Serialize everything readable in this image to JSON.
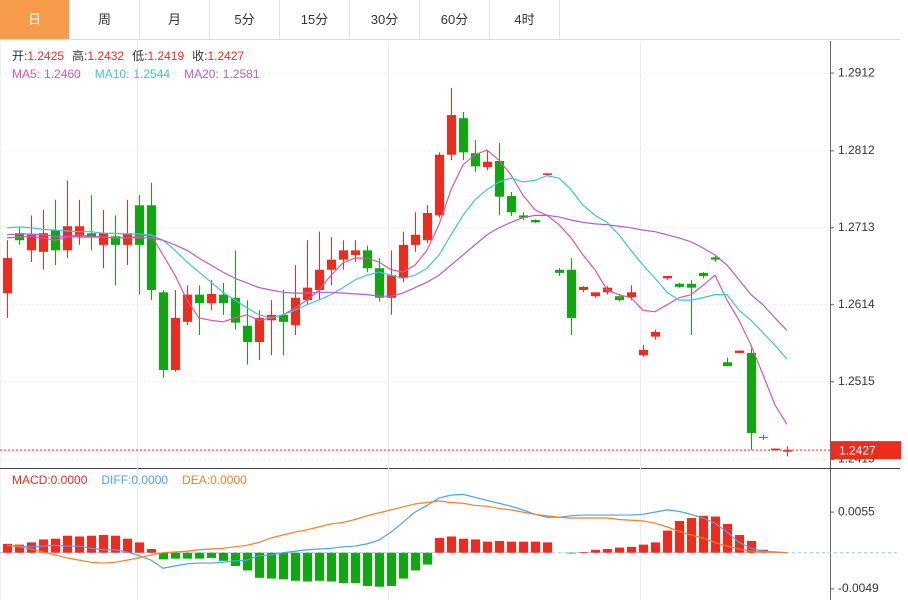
{
  "tabs": [
    "日",
    "周",
    "月",
    "5分",
    "15分",
    "30分",
    "60分",
    "4时"
  ],
  "active_tab": 0,
  "chart_data": [
    {
      "type": "candlestick",
      "ylim": [
        1.2404,
        1.2952
      ],
      "yticks": [
        1.2912,
        1.2812,
        1.2713,
        1.2614,
        1.2515,
        1.2415
      ],
      "grid": true,
      "up_color": "#ee2b1c",
      "down_color": "#10a810",
      "ohlc_labels": [
        "开:",
        "高:",
        "低:",
        "收:"
      ],
      "open": [
        1.2629,
        1.2706,
        1.2684,
        1.2682,
        1.271,
        1.2684,
        1.2702,
        1.2706,
        1.2691,
        1.2702,
        1.2691,
        1.2742,
        1.2742,
        1.263,
        1.253,
        1.2592,
        1.2627,
        1.2616,
        1.2627,
        1.2623,
        1.2587,
        1.2566,
        1.2594,
        1.2601,
        1.2588,
        1.262,
        1.2633,
        1.2659,
        1.2672,
        1.2678,
        1.2684,
        1.2661,
        1.2623,
        1.2648,
        1.2691,
        1.2697,
        1.2729,
        1.2807,
        1.2854,
        1.2809,
        1.2791,
        1.2799,
        1.2754,
        1.2729,
        1.2723,
        1.2781,
        1.2659,
        1.2659,
        1.2633,
        1.2625,
        1.263,
        1.2625,
        1.2624,
        1.2549,
        1.2573,
        1.2648,
        1.2641,
        1.2641,
        1.2655,
        1.2675,
        1.254,
        1.2552,
        1.2552,
        1.2444,
        1.2427,
        1.2425
      ],
      "high": [
        1.2697,
        1.2713,
        1.2729,
        1.2736,
        1.2749,
        1.2774,
        1.2749,
        1.2755,
        1.2736,
        1.2729,
        1.2749,
        1.2755,
        1.2771,
        1.2633,
        1.2633,
        1.2639,
        1.2639,
        1.2646,
        1.2642,
        1.2684,
        1.262,
        1.2607,
        1.262,
        1.2633,
        1.2665,
        1.2697,
        1.2708,
        1.2701,
        1.2697,
        1.2697,
        1.269,
        1.2674,
        1.2684,
        1.2708,
        1.2733,
        1.2742,
        1.281,
        1.2893,
        1.2862,
        1.2826,
        1.2813,
        1.2822,
        1.2759,
        1.2733,
        1.2724,
        1.2783,
        1.2661,
        1.2674,
        1.2638,
        1.263,
        1.2638,
        1.2628,
        1.2639,
        1.2562,
        1.2582,
        1.2651,
        1.2642,
        1.2646,
        1.2656,
        1.2677,
        1.2546,
        1.2555,
        1.2558,
        1.2447,
        1.2429,
        1.2432
      ],
      "low": [
        1.2597,
        1.2691,
        1.2669,
        1.2659,
        1.2665,
        1.2674,
        1.2691,
        1.2684,
        1.2661,
        1.2639,
        1.2665,
        1.2627,
        1.262,
        1.252,
        1.2528,
        1.2588,
        1.2575,
        1.2607,
        1.2601,
        1.2582,
        1.2537,
        1.2543,
        1.2549,
        1.2549,
        1.2575,
        1.2614,
        1.262,
        1.2639,
        1.2659,
        1.2669,
        1.2656,
        1.2618,
        1.2601,
        1.2643,
        1.2682,
        1.2693,
        1.2726,
        1.28,
        1.28,
        1.2785,
        1.2787,
        1.2729,
        1.2728,
        1.2723,
        1.2719,
        1.278,
        1.2651,
        1.2575,
        1.263,
        1.2623,
        1.2627,
        1.2618,
        1.262,
        1.2547,
        1.2569,
        1.2646,
        1.2636,
        1.2575,
        1.2648,
        1.2669,
        1.2535,
        1.2552,
        1.2427,
        1.244,
        1.2426,
        1.2419
      ],
      "close": [
        1.2674,
        1.2697,
        1.2704,
        1.2706,
        1.2684,
        1.2715,
        1.2715,
        1.2701,
        1.2706,
        1.2691,
        1.2706,
        1.2691,
        1.2633,
        1.253,
        1.2597,
        1.2627,
        1.2616,
        1.2628,
        1.2616,
        1.2591,
        1.2566,
        1.2597,
        1.2601,
        1.2592,
        1.2623,
        1.2636,
        1.2659,
        1.2672,
        1.2684,
        1.2684,
        1.2661,
        1.2623,
        1.2652,
        1.2691,
        1.2704,
        1.2732,
        1.2807,
        1.2858,
        1.281,
        1.2792,
        1.2798,
        1.2753,
        1.2733,
        1.2726,
        1.272,
        1.2783,
        1.2655,
        1.2597,
        1.2637,
        1.263,
        1.2636,
        1.262,
        1.263,
        1.2556,
        1.2579,
        1.2651,
        1.2637,
        1.2636,
        1.2651,
        1.2672,
        1.2535,
        1.2555,
        1.2449,
        1.2443,
        1.2429,
        1.2427
      ],
      "series": [
        {
          "name": "MA5:",
          "color": "#e0559b",
          "values": [
            1.27,
            1.2701,
            1.2702,
            1.27,
            1.2697,
            1.2701,
            1.2704,
            1.2702,
            1.2701,
            1.27,
            1.27,
            1.2702,
            1.2704,
            1.2678,
            1.2652,
            1.262,
            1.2597,
            1.2594,
            1.2592,
            1.2597,
            1.2601,
            1.2594,
            1.2597,
            1.2601,
            1.261,
            1.262,
            1.2633,
            1.2652,
            1.2668,
            1.2674,
            1.2674,
            1.2669,
            1.2659,
            1.2656,
            1.2665,
            1.2684,
            1.2717,
            1.2762,
            1.2794,
            1.2807,
            1.2813,
            1.28,
            1.2781,
            1.2755,
            1.2736,
            1.2729,
            1.2717,
            1.27,
            1.2678,
            1.2659,
            1.2633,
            1.2627,
            1.2623,
            1.2607,
            1.2605,
            1.2614,
            1.2623,
            1.2627,
            1.2639,
            1.2652,
            1.262,
            1.2594,
            1.2562,
            1.2524,
            1.2485,
            1.246
          ],
          "value_labels": [
            null,
            null,
            null,
            null,
            null,
            null,
            null,
            null,
            null,
            null,
            null,
            null,
            null,
            null,
            null,
            null,
            null,
            null,
            null,
            null,
            null,
            null,
            null,
            null,
            null,
            null,
            null,
            null,
            null,
            null,
            null,
            null,
            null,
            null,
            null,
            null,
            null,
            null,
            null,
            null,
            null,
            null,
            null,
            null,
            null,
            null,
            null,
            null,
            null,
            null,
            null,
            null,
            null,
            null,
            null,
            null,
            null,
            null,
            null,
            null,
            null,
            null,
            null,
            null,
            null,
            "1.2460"
          ]
        },
        {
          "name": "MA10:",
          "color": "#3cc4d8",
          "values": [
            1.2713,
            1.2714,
            1.2713,
            1.2711,
            1.271,
            1.2709,
            1.2708,
            1.2708,
            1.2706,
            1.2706,
            1.2705,
            1.2705,
            1.2704,
            1.2697,
            1.2684,
            1.2669,
            1.2656,
            1.2643,
            1.263,
            1.262,
            1.261,
            1.2601,
            1.2597,
            1.2601,
            1.2607,
            1.2614,
            1.262,
            1.2627,
            1.2636,
            1.2646,
            1.2652,
            1.2656,
            1.2652,
            1.2648,
            1.2652,
            1.2661,
            1.2678,
            1.2704,
            1.2729,
            1.2749,
            1.2762,
            1.2772,
            1.2777,
            1.2772,
            1.2774,
            1.278,
            1.2777,
            1.2762,
            1.2742,
            1.2729,
            1.272,
            1.2704,
            1.2684,
            1.2665,
            1.2648,
            1.263,
            1.262,
            1.262,
            1.2623,
            1.2627,
            1.2627,
            1.2607,
            1.2594,
            1.2578,
            1.2562,
            1.2544
          ]
        },
        {
          "name": "MA20:",
          "color": "#b062c4",
          "values": [
            1.2704,
            1.2705,
            1.2705,
            1.2704,
            1.2702,
            1.2702,
            1.2701,
            1.2701,
            1.2701,
            1.27,
            1.27,
            1.27,
            1.27,
            1.2697,
            1.2691,
            1.2684,
            1.2674,
            1.2665,
            1.2656,
            1.2648,
            1.2642,
            1.2636,
            1.2633,
            1.263,
            1.2629,
            1.2629,
            1.263,
            1.263,
            1.2629,
            1.2628,
            1.2627,
            1.2625,
            1.2625,
            1.2629,
            1.2636,
            1.2643,
            1.2652,
            1.2665,
            1.2678,
            1.2691,
            1.2704,
            1.2713,
            1.272,
            1.2726,
            1.2729,
            1.2729,
            1.2727,
            1.2723,
            1.272,
            1.2718,
            1.2717,
            1.2715,
            1.2713,
            1.271,
            1.2708,
            1.2704,
            1.27,
            1.2695,
            1.2687,
            1.2678,
            1.2665,
            1.2646,
            1.2627,
            1.2614,
            1.2597,
            1.2581
          ]
        }
      ]
    },
    {
      "type": "macd",
      "ylim": [
        -0.0064,
        0.0112
      ],
      "yticks": [
        0.0055,
        -0.0049
      ],
      "series": [
        {
          "name": "MACD:",
          "color": "#ee2b1c",
          "negative_color": "#10a810",
          "style": "bar",
          "values": [
            0.0012,
            0.0011,
            0.0014,
            0.0018,
            0.0019,
            0.0023,
            0.0022,
            0.0023,
            0.0024,
            0.0023,
            0.0019,
            0.0014,
            0.0005,
            -0.0009,
            -0.0008,
            -0.0008,
            -0.0008,
            -0.0007,
            -0.0011,
            -0.0018,
            -0.0024,
            -0.0034,
            -0.0035,
            -0.0036,
            -0.0038,
            -0.0039,
            -0.0038,
            -0.0039,
            -0.0041,
            -0.0041,
            -0.0045,
            -0.0046,
            -0.0045,
            -0.0035,
            -0.0024,
            -0.0016,
            0.002,
            0.0022,
            0.0019,
            0.0018,
            0.0015,
            0.0016,
            0.0015,
            0.0015,
            0.0015,
            0.0014,
            0,
            -0.0001,
            0.0001,
            0.0004,
            0.0005,
            0.0007,
            0.0008,
            0.0011,
            0.0014,
            0.003,
            0.0043,
            0.0047,
            0.005,
            0.0049,
            0.0039,
            0.0024,
            0.0016,
            0.0004,
            0.0001,
            0
          ],
          "value_labels": [
            null,
            null,
            null,
            null,
            null,
            null,
            null,
            null,
            null,
            null,
            null,
            null,
            null,
            null,
            null,
            null,
            null,
            null,
            null,
            null,
            null,
            null,
            null,
            null,
            null,
            null,
            null,
            null,
            null,
            null,
            null,
            null,
            null,
            null,
            null,
            null,
            null,
            null,
            null,
            null,
            null,
            null,
            null,
            null,
            null,
            null,
            null,
            null,
            null,
            null,
            null,
            null,
            null,
            null,
            null,
            null,
            null,
            null,
            null,
            null,
            null,
            null,
            null,
            null,
            null,
            "0.0000"
          ]
        },
        {
          "name": "DIFF:",
          "color": "#4ea2e8",
          "style": "line",
          "values": [
            0.001,
            0.0009,
            0.0008,
            0.0009,
            0.001,
            0.0009,
            0.0009,
            0.0006,
            0.0004,
            0.0004,
            0.0001,
            -0.0004,
            -0.001,
            -0.0021,
            -0.0018,
            -0.0015,
            -0.0014,
            -0.0014,
            -0.0013,
            -0.0011,
            -0.001,
            -0.0004,
            -0.0003,
            0,
            0.0002,
            0.0004,
            0.0005,
            0.0006,
            0.0008,
            0.0009,
            0.0012,
            0.0017,
            0.0028,
            0.0041,
            0.0055,
            0.0064,
            0.0074,
            0.0078,
            0.0079,
            0.0075,
            0.0071,
            0.0067,
            0.0063,
            0.0058,
            0.0052,
            0.0048,
            0.0048,
            0.005,
            0.0051,
            0.0051,
            0.0051,
            0.0051,
            0.0051,
            0.0052,
            0.0055,
            0.0058,
            0.0056,
            0.0052,
            0.0047,
            0.004,
            0.0028,
            0.0014,
            0.0006,
            0.0002,
            0.0001,
            0
          ],
          "value_labels": [
            null,
            null,
            null,
            null,
            null,
            null,
            null,
            null,
            null,
            null,
            null,
            null,
            null,
            null,
            null,
            null,
            null,
            null,
            null,
            null,
            null,
            null,
            null,
            null,
            null,
            null,
            null,
            null,
            null,
            null,
            null,
            null,
            null,
            null,
            null,
            null,
            null,
            null,
            null,
            null,
            null,
            null,
            null,
            null,
            null,
            null,
            null,
            null,
            null,
            null,
            null,
            null,
            null,
            null,
            null,
            null,
            null,
            null,
            null,
            null,
            null,
            null,
            null,
            null,
            null,
            "0.0000"
          ]
        },
        {
          "name": "DEA:",
          "color": "#f2802c",
          "style": "line",
          "values": [
            0.001,
            0.0008,
            0.0005,
            0.0001,
            -0.0003,
            -0.0007,
            -0.001,
            -0.0013,
            -0.0014,
            -0.0013,
            -0.001,
            -0.0007,
            -0.0003,
            0,
            0.0001,
            0.0002,
            0.0004,
            0.0005,
            0.0006,
            0.0008,
            0.001,
            0.0014,
            0.002,
            0.0024,
            0.0028,
            0.0031,
            0.0035,
            0.0039,
            0.0041,
            0.0045,
            0.005,
            0.0054,
            0.0058,
            0.0062,
            0.0066,
            0.0068,
            0.007,
            0.0068,
            0.0067,
            0.0064,
            0.0063,
            0.006,
            0.0058,
            0.0055,
            0.0052,
            0.005,
            0.0048,
            0.0047,
            0.0047,
            0.0047,
            0.0047,
            0.0045,
            0.0044,
            0.0043,
            0.004,
            0.0035,
            0.0029,
            0.0024,
            0.002,
            0.0014,
            0.0009,
            0.0005,
            0.0002,
            0.0001,
            0.0001,
            0
          ],
          "value_labels": [
            null,
            null,
            null,
            null,
            null,
            null,
            null,
            null,
            null,
            null,
            null,
            null,
            null,
            null,
            null,
            null,
            null,
            null,
            null,
            null,
            null,
            null,
            null,
            null,
            null,
            null,
            null,
            null,
            null,
            null,
            null,
            null,
            null,
            null,
            null,
            null,
            null,
            null,
            null,
            null,
            null,
            null,
            null,
            null,
            null,
            null,
            null,
            null,
            null,
            null,
            null,
            null,
            null,
            null,
            null,
            null,
            null,
            null,
            null,
            null,
            null,
            null,
            null,
            null,
            null,
            "0.0000"
          ]
        }
      ]
    }
  ]
}
